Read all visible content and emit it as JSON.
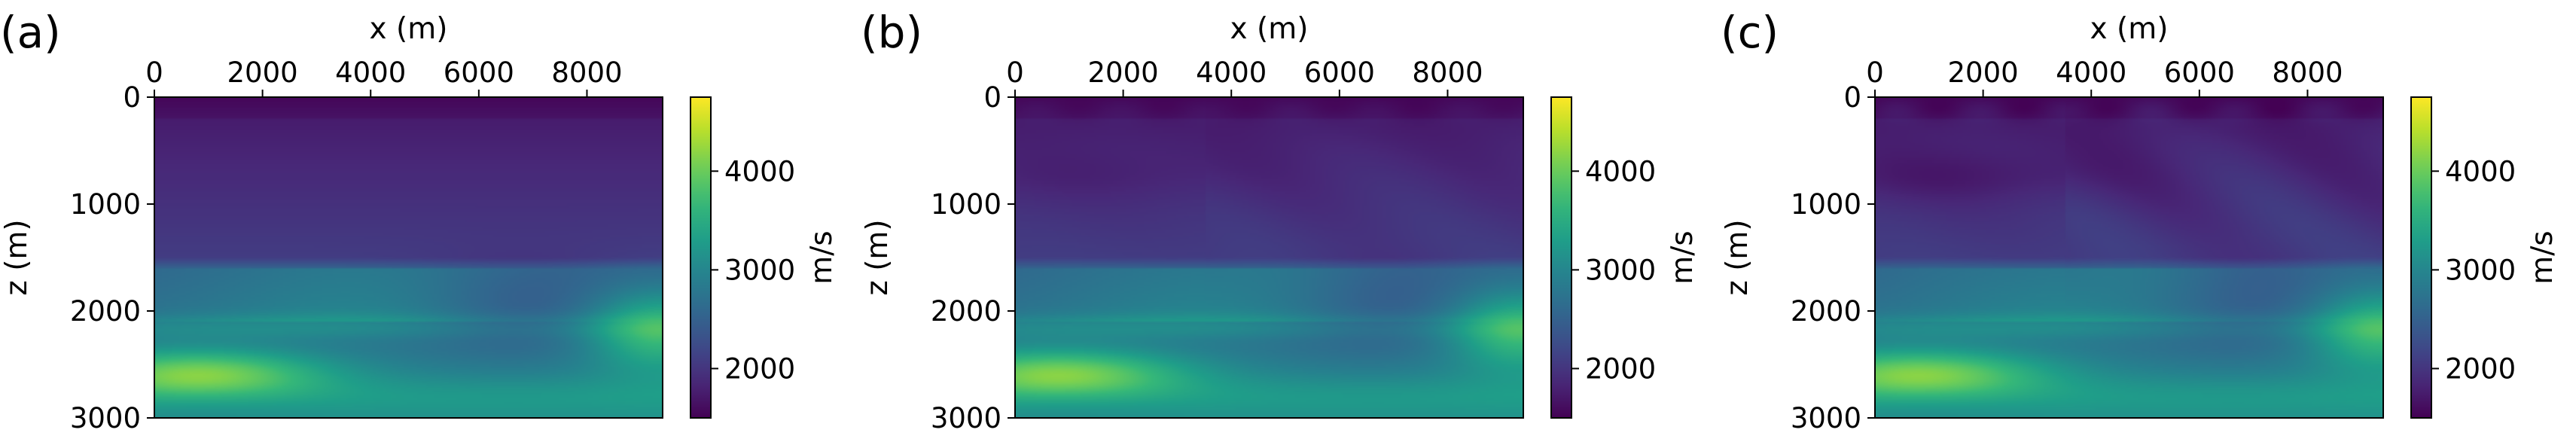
{
  "chart_data": [
    {
      "panel_label": "(a)",
      "type": "heatmap",
      "xlabel": "x (m)",
      "ylabel": "z (m)",
      "xlim": [
        0,
        9400
      ],
      "ylim": [
        0,
        3000
      ],
      "x_ticks": [
        0,
        2000,
        4000,
        6000,
        8000
      ],
      "y_ticks": [
        0,
        1000,
        2000,
        3000
      ],
      "colorbar": {
        "label": "m/s",
        "min": 1500,
        "max": 4750,
        "ticks": [
          2000,
          3000,
          4000
        ],
        "colormap": "viridis"
      },
      "smoothness": "smooth"
    },
    {
      "panel_label": "(b)",
      "type": "heatmap",
      "xlabel": "x (m)",
      "ylabel": "z (m)",
      "xlim": [
        0,
        9400
      ],
      "ylim": [
        0,
        3000
      ],
      "x_ticks": [
        0,
        2000,
        4000,
        6000,
        8000
      ],
      "y_ticks": [
        0,
        1000,
        2000,
        3000
      ],
      "colorbar": {
        "label": "m/s",
        "min": 1500,
        "max": 4750,
        "ticks": [
          2000,
          3000,
          4000
        ],
        "colormap": "viridis"
      },
      "smoothness": "medium"
    },
    {
      "panel_label": "(c)",
      "type": "heatmap",
      "xlabel": "x (m)",
      "ylabel": "z (m)",
      "xlim": [
        0,
        9400
      ],
      "ylim": [
        0,
        3000
      ],
      "x_ticks": [
        0,
        2000,
        4000,
        6000,
        8000
      ],
      "y_ticks": [
        0,
        1000,
        2000,
        3000
      ],
      "colorbar": {
        "label": "m/s",
        "min": 1500,
        "max": 4750,
        "ticks": [
          2000,
          3000,
          4000
        ],
        "colormap": "viridis"
      },
      "smoothness": "detailed"
    }
  ]
}
